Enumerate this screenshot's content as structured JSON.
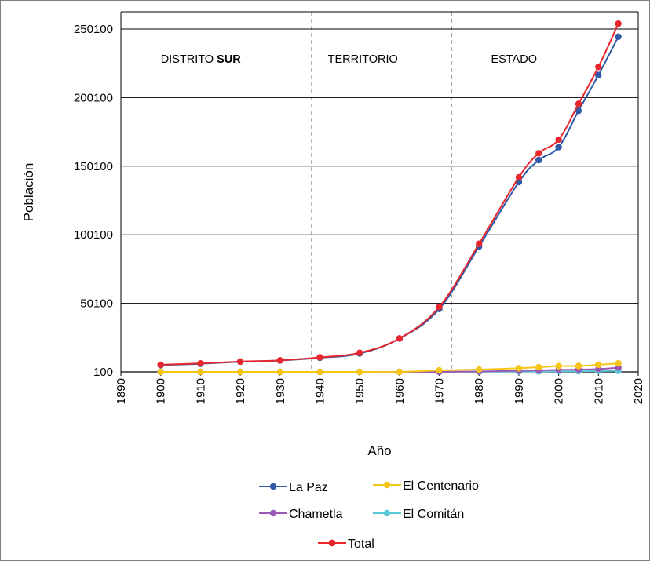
{
  "chart_data": {
    "type": "line",
    "xlabel": "Año",
    "ylabel": "Población",
    "xlim": [
      1890,
      2020
    ],
    "ylim": [
      100,
      255100
    ],
    "x_ticks": [
      1890,
      1900,
      1910,
      1920,
      1930,
      1940,
      1950,
      1960,
      1970,
      1980,
      1990,
      2000,
      2010,
      2020
    ],
    "y_ticks": [
      100,
      50100,
      100100,
      150100,
      200100,
      250100
    ],
    "grid": "horizontal",
    "legend_position": "bottom",
    "era_dividers": [
      1938,
      1973
    ],
    "era_labels": [
      {
        "text": "DISTRITO ",
        "bold_text": "SUR",
        "x": 1900
      },
      {
        "text": "TERRITORIO",
        "bold_text": "",
        "x": 1942
      },
      {
        "text": "ESTADO",
        "bold_text": "",
        "x": 1983
      }
    ],
    "series": [
      {
        "name": "La Paz",
        "color": "#2e5aa8",
        "x": [
          1900,
          1910,
          1920,
          1930,
          1940,
          1950,
          1960,
          1970,
          1980,
          1990,
          1995,
          2000,
          2005,
          2010,
          2015
        ],
        "values": [
          5000,
          6000,
          7500,
          8400,
          10400,
          13500,
          24400,
          46000,
          91500,
          138500,
          154500,
          164000,
          190500,
          216500,
          244500
        ]
      },
      {
        "name": "El Centenario",
        "color": "#f5c518",
        "x": [
          1900,
          1910,
          1920,
          1930,
          1940,
          1950,
          1960,
          1970,
          1980,
          1990,
          1995,
          2000,
          2005,
          2010,
          2015
        ],
        "values": [
          100,
          100,
          100,
          100,
          100,
          100,
          100,
          1200,
          1800,
          2800,
          3500,
          4300,
          4400,
          5300,
          6300
        ]
      },
      {
        "name": "Chametla",
        "color": "#9b59b6",
        "x": [
          1900,
          1910,
          1920,
          1930,
          1940,
          1950,
          1960,
          1970,
          1980,
          1990,
          1995,
          2000,
          2005,
          2010,
          2015
        ],
        "values": [
          100,
          100,
          100,
          100,
          100,
          100,
          100,
          100,
          400,
          900,
          1200,
          1600,
          1800,
          2200,
          3200
        ]
      },
      {
        "name": "El Comitán",
        "color": "#5bc8d8",
        "x": [
          1900,
          1910,
          1920,
          1930,
          1940,
          1950,
          1960,
          1970,
          1980,
          1990,
          1995,
          2000,
          2005,
          2010,
          2015
        ],
        "values": [
          100,
          100,
          100,
          100,
          100,
          100,
          100,
          100,
          200,
          300,
          400,
          500,
          600,
          700,
          800
        ]
      },
      {
        "name": "Total",
        "color": "#e8262d",
        "x": [
          1900,
          1910,
          1920,
          1930,
          1940,
          1950,
          1960,
          1970,
          1980,
          1990,
          1995,
          2000,
          2005,
          2010,
          2015
        ],
        "values": [
          5300,
          6300,
          7600,
          8500,
          10700,
          14000,
          24500,
          47500,
          93500,
          142000,
          159500,
          169500,
          195500,
          222500,
          254000
        ]
      }
    ],
    "legend_order": [
      "La Paz",
      "El Centenario",
      "Chametla",
      "El Comitán",
      "Total"
    ]
  }
}
